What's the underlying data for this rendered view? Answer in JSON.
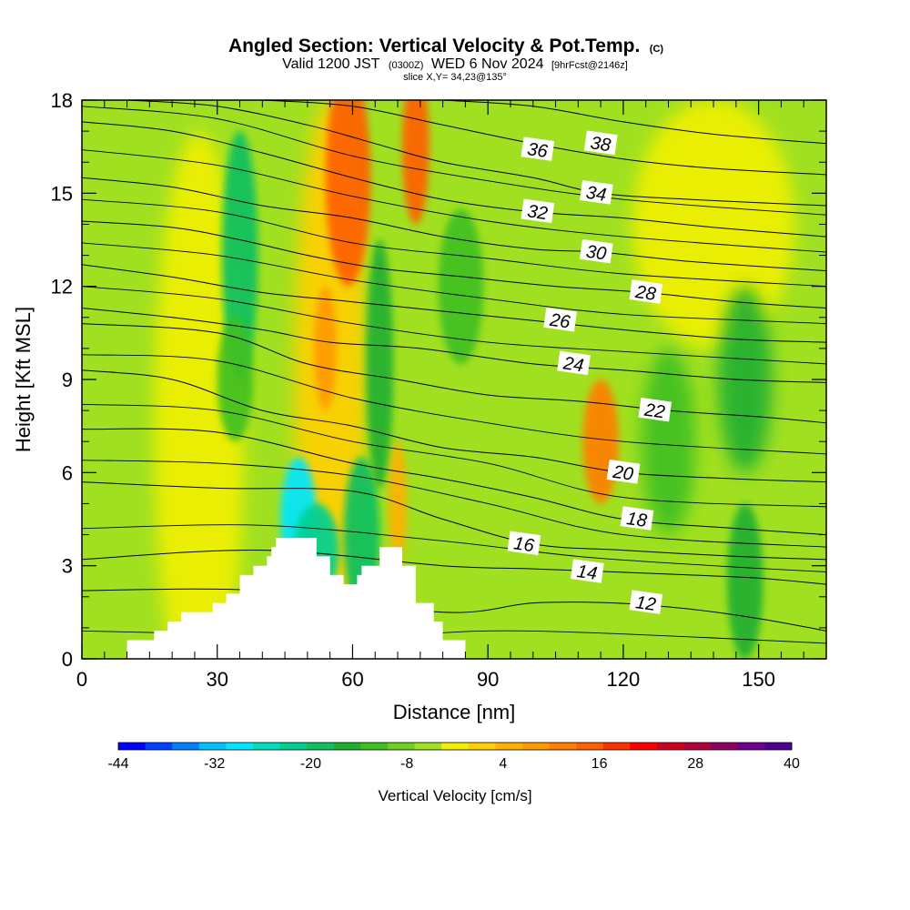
{
  "title": {
    "main": "Angled Section: Vertical Velocity & Pot.Temp.",
    "unit_tag": "(C)",
    "valid_prefix": "Valid 1200 JST",
    "valid_utc": "(0300Z)",
    "valid_date": "WED 6 Nov 2024",
    "forecast": "[9hrFcst@2146z]",
    "slice": "slice X,Y= 34,23@135°"
  },
  "chart_data": {
    "type": "heatmap",
    "xlabel": "Distance [nm]",
    "ylabel": "Height [Kft MSL]",
    "xlim": [
      0,
      165
    ],
    "ylim": [
      0,
      18
    ],
    "x_ticks": [
      0,
      30,
      60,
      90,
      120,
      150
    ],
    "y_ticks": [
      0,
      3,
      6,
      9,
      12,
      15,
      18
    ],
    "grid": false,
    "colorbar": {
      "title": "Vertical Velocity [cm/s]",
      "placement": "bottom",
      "min": -44,
      "max": 40,
      "step": 4,
      "tick_labels": [
        "-44",
        "-32",
        "-20",
        "-8",
        "4",
        "16",
        "28",
        "40"
      ],
      "colors": [
        "#0000ff",
        "#0040ff",
        "#0080ff",
        "#00c0ff",
        "#00e6ff",
        "#00e0c0",
        "#00d090",
        "#10c060",
        "#20b030",
        "#40c020",
        "#70d020",
        "#a0e020",
        "#f0f000",
        "#ffd000",
        "#ffb000",
        "#ff9a00",
        "#ff8000",
        "#ff6000",
        "#ff3000",
        "#ff0000",
        "#d00020",
        "#b00040",
        "#900060",
        "#700090",
        "#500090"
      ]
    },
    "shaded_features": [
      {
        "x": 26,
        "y": 7.5,
        "rx": 10,
        "ry": 9.5,
        "w": 6
      },
      {
        "x": 35,
        "y": 13,
        "rx": 4,
        "ry": 4,
        "w": -14
      },
      {
        "x": 34,
        "y": 9,
        "rx": 4,
        "ry": 2,
        "w": -8
      },
      {
        "x": 55,
        "y": 9,
        "rx": 8,
        "ry": 9,
        "w": 10
      },
      {
        "x": 59,
        "y": 15.5,
        "rx": 5,
        "ry": 3.5,
        "w": 24
      },
      {
        "x": 54,
        "y": 10,
        "rx": 2.5,
        "ry": 2,
        "w": 18
      },
      {
        "x": 74,
        "y": 16.5,
        "rx": 3,
        "ry": 2.5,
        "w": 24
      },
      {
        "x": 48,
        "y": 4.5,
        "rx": 4,
        "ry": 2,
        "w": -28
      },
      {
        "x": 52,
        "y": 3.5,
        "rx": 5,
        "ry": 1.5,
        "w": -18
      },
      {
        "x": 62,
        "y": 4,
        "rx": 4,
        "ry": 2.5,
        "w": -14
      },
      {
        "x": 66,
        "y": 9.5,
        "rx": 3,
        "ry": 4,
        "w": -12
      },
      {
        "x": 70,
        "y": 5,
        "rx": 2,
        "ry": 2,
        "w": 12
      },
      {
        "x": 84,
        "y": 12,
        "rx": 5,
        "ry": 2.5,
        "w": -8
      },
      {
        "x": 115,
        "y": 7,
        "rx": 4,
        "ry": 2,
        "w": 20
      },
      {
        "x": 140,
        "y": 14,
        "rx": 18,
        "ry": 4,
        "w": 5
      },
      {
        "x": 130,
        "y": 7,
        "rx": 6,
        "ry": 3,
        "w": -8
      },
      {
        "x": 147,
        "y": 9,
        "rx": 6,
        "ry": 3,
        "w": -12
      },
      {
        "x": 147,
        "y": 2.5,
        "rx": 4,
        "ry": 2.5,
        "w": -12
      }
    ],
    "contours": [
      {
        "label": "12",
        "x": [
          0,
          40,
          80,
          100,
          118,
          135,
          150,
          165
        ],
        "y": [
          2.2,
          2.2,
          1.5,
          1.8,
          1.8,
          1.6,
          1.3,
          0.9
        ],
        "label_at": [
          125,
          1.8
        ]
      },
      {
        "label": "14",
        "x": [
          0,
          40,
          80,
          100,
          118,
          135,
          150,
          165
        ],
        "y": [
          3.2,
          3.5,
          3.0,
          2.9,
          2.8,
          2.7,
          2.6,
          2.4
        ],
        "label_at": [
          112,
          2.8
        ]
      },
      {
        "label": "16",
        "x": [
          0,
          30,
          60,
          80,
          100,
          120,
          145,
          165
        ],
        "y": [
          5.7,
          5.5,
          5.4,
          4.5,
          3.7,
          3.5,
          3.3,
          3.2
        ],
        "label_at": [
          98,
          3.7
        ]
      },
      {
        "label": "18",
        "x": [
          0,
          30,
          60,
          80,
          100,
          120,
          145,
          165
        ],
        "y": [
          7.4,
          7.3,
          6.3,
          5.8,
          5.2,
          4.5,
          4.2,
          4.0
        ],
        "label_at": [
          123,
          4.5
        ]
      },
      {
        "label": "20",
        "x": [
          0,
          20,
          40,
          60,
          80,
          100,
          120,
          145,
          165
        ],
        "y": [
          9.3,
          9.0,
          8.0,
          7.5,
          6.8,
          6.5,
          6.0,
          5.8,
          5.7
        ],
        "label_at": [
          120,
          6.0
        ]
      },
      {
        "label": "22",
        "x": [
          0,
          30,
          50,
          70,
          90,
          110,
          130,
          150,
          165
        ],
        "y": [
          10.8,
          10.5,
          9.5,
          9.0,
          8.5,
          8.3,
          8.0,
          7.8,
          7.6
        ],
        "label_at": [
          127,
          8.0
        ]
      },
      {
        "label": "24",
        "x": [
          0,
          20,
          40,
          55,
          75,
          100,
          120,
          145,
          165
        ],
        "y": [
          11.3,
          11.0,
          10.6,
          10.2,
          10.0,
          9.5,
          9.3,
          9.0,
          8.9
        ],
        "label_at": [
          109,
          9.5
        ]
      },
      {
        "label": "26",
        "x": [
          0,
          20,
          40,
          60,
          80,
          100,
          120,
          145,
          165
        ],
        "y": [
          12.7,
          12.3,
          11.8,
          11.5,
          11.2,
          10.9,
          10.6,
          10.3,
          10.2
        ],
        "label_at": [
          106,
          10.9
        ]
      },
      {
        "label": "28",
        "x": [
          0,
          20,
          35,
          50,
          65,
          85,
          105,
          125,
          145,
          165
        ],
        "y": [
          14.1,
          13.9,
          13.5,
          13.0,
          12.6,
          12.3,
          12.0,
          11.8,
          11.5,
          11.3
        ],
        "label_at": [
          125,
          11.8
        ]
      },
      {
        "label": "30",
        "x": [
          0,
          20,
          40,
          60,
          80,
          100,
          115,
          135,
          165
        ],
        "y": [
          15.5,
          15.2,
          14.6,
          14.2,
          13.6,
          13.2,
          13.1,
          12.8,
          12.5
        ],
        "label_at": [
          114,
          13.1
        ]
      },
      {
        "label": "32",
        "x": [
          0,
          20,
          40,
          60,
          80,
          100,
          120,
          140,
          165
        ],
        "y": [
          17.3,
          17.0,
          16.3,
          15.5,
          14.8,
          14.4,
          14.2,
          13.9,
          13.6
        ],
        "label_at": [
          101,
          14.4
        ]
      },
      {
        "label": "34",
        "x": [
          10,
          30,
          50,
          65,
          80,
          100,
          115,
          135,
          165
        ],
        "y": [
          18.0,
          17.8,
          17.2,
          16.6,
          16.0,
          15.5,
          15.0,
          14.8,
          14.6
        ],
        "label_at": [
          114,
          15.0
        ]
      },
      {
        "label": "36",
        "x": [
          40,
          60,
          80,
          100,
          120,
          140,
          165
        ],
        "y": [
          18.0,
          17.8,
          17.2,
          16.6,
          16.1,
          15.8,
          15.6
        ],
        "label_at": [
          101,
          16.4
        ]
      },
      {
        "label": "38",
        "x": [
          80,
          100,
          120,
          140,
          165
        ],
        "y": [
          18.0,
          17.8,
          17.3,
          16.9,
          16.6
        ],
        "label_at": [
          115,
          16.6
        ]
      }
    ],
    "unlabeled_contours": [
      {
        "x": [
          0,
          30,
          60,
          90,
          120,
          165
        ],
        "y": [
          0.9,
          0.8,
          0.7,
          0.9,
          0.8,
          0.5
        ]
      },
      {
        "x": [
          0,
          40,
          80,
          110,
          140,
          165
        ],
        "y": [
          4.2,
          4.3,
          3.8,
          3.3,
          3.0,
          2.8
        ]
      },
      {
        "x": [
          0,
          30,
          60,
          90,
          120,
          165
        ],
        "y": [
          6.4,
          6.3,
          5.9,
          5.0,
          4.0,
          3.6
        ]
      },
      {
        "x": [
          0,
          30,
          60,
          90,
          120,
          165
        ],
        "y": [
          8.2,
          8.0,
          7.0,
          6.3,
          5.2,
          4.9
        ]
      },
      {
        "x": [
          0,
          30,
          60,
          90,
          120,
          165
        ],
        "y": [
          9.8,
          9.6,
          8.4,
          7.6,
          7.0,
          6.6
        ]
      },
      {
        "x": [
          0,
          30,
          60,
          90,
          120,
          165
        ],
        "y": [
          12.0,
          11.6,
          10.8,
          10.2,
          9.9,
          9.5
        ]
      },
      {
        "x": [
          0,
          30,
          60,
          90,
          120,
          165
        ],
        "y": [
          13.4,
          13.0,
          12.2,
          11.6,
          11.1,
          10.8
        ]
      },
      {
        "x": [
          0,
          30,
          60,
          90,
          120,
          165
        ],
        "y": [
          14.8,
          14.4,
          13.4,
          12.9,
          12.4,
          12.0
        ]
      },
      {
        "x": [
          0,
          30,
          60,
          90,
          120,
          165
        ],
        "y": [
          16.4,
          15.9,
          14.9,
          14.1,
          13.6,
          13.1
        ]
      },
      {
        "x": [
          0,
          30,
          60,
          90,
          120,
          165
        ],
        "y": [
          17.8,
          17.4,
          16.2,
          15.4,
          14.8,
          14.3
        ]
      }
    ],
    "terrain": [
      [
        10,
        0
      ],
      [
        10,
        0.6
      ],
      [
        16,
        0.6
      ],
      [
        16,
        0.9
      ],
      [
        19,
        0.9
      ],
      [
        19,
        1.2
      ],
      [
        22,
        1.2
      ],
      [
        22,
        1.5
      ],
      [
        29,
        1.5
      ],
      [
        29,
        1.8
      ],
      [
        32,
        1.8
      ],
      [
        32,
        2.1
      ],
      [
        35,
        2.1
      ],
      [
        35,
        2.7
      ],
      [
        38,
        2.7
      ],
      [
        38,
        3.0
      ],
      [
        41,
        3.0
      ],
      [
        41,
        3.3
      ],
      [
        42,
        3.3
      ],
      [
        42,
        3.6
      ],
      [
        43,
        3.6
      ],
      [
        43,
        3.9
      ],
      [
        52,
        3.9
      ],
      [
        52,
        3.3
      ],
      [
        55,
        3.3
      ],
      [
        55,
        2.7
      ],
      [
        58,
        2.7
      ],
      [
        58,
        2.4
      ],
      [
        61,
        2.4
      ],
      [
        61,
        2.7
      ],
      [
        62,
        2.7
      ],
      [
        62,
        3.0
      ],
      [
        66,
        3.0
      ],
      [
        66,
        3.6
      ],
      [
        71,
        3.6
      ],
      [
        71,
        3.0
      ],
      [
        74,
        3.0
      ],
      [
        74,
        1.8
      ],
      [
        78,
        1.8
      ],
      [
        78,
        1.2
      ],
      [
        80,
        1.2
      ],
      [
        80,
        0.6
      ],
      [
        85,
        0.6
      ],
      [
        85,
        0
      ]
    ]
  }
}
